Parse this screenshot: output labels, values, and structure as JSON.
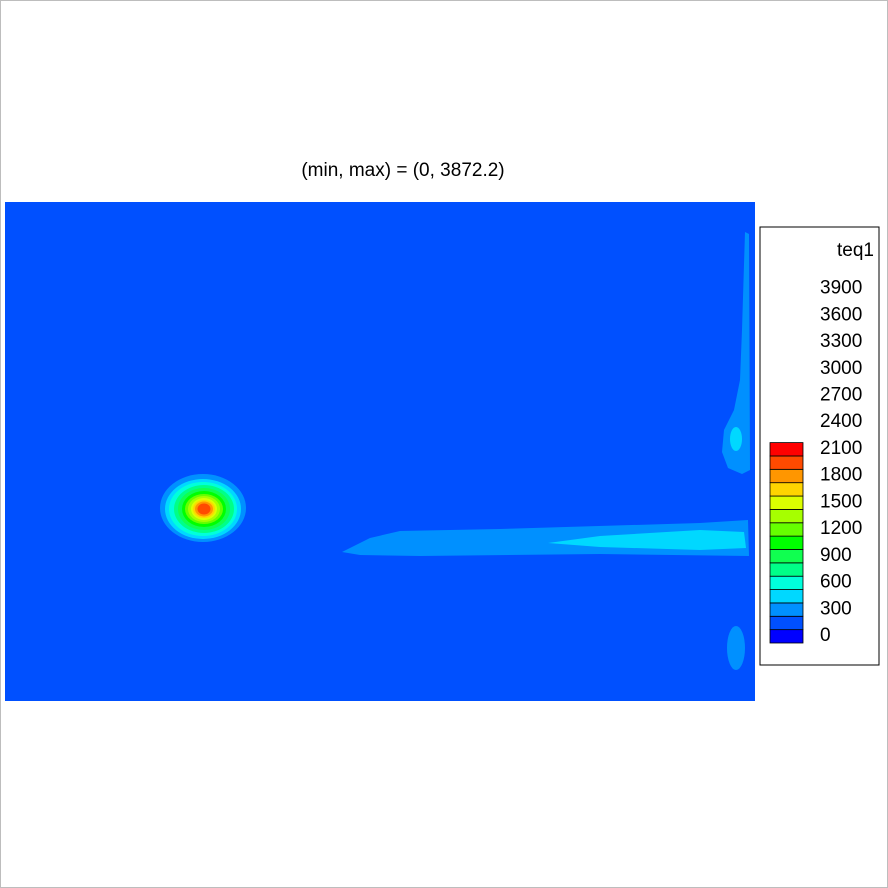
{
  "chart_data": {
    "type": "heatmap",
    "title": "(min, max) = (0, 3872.2)",
    "variable": "teq1",
    "min": 0,
    "max": 3872.2,
    "levels": [
      0,
      300,
      600,
      900,
      1200,
      1500,
      1800,
      2100,
      2400,
      2700,
      3000,
      3300,
      3600,
      3900
    ],
    "colors": [
      "#0000ff",
      "#0050ff",
      "#0090ff",
      "#00d8ff",
      "#00ffdc",
      "#00ff88",
      "#10ff50",
      "#00ff00",
      "#66ff00",
      "#a6ff00",
      "#dcff00",
      "#ffd400",
      "#ff9600",
      "#ff4a00",
      "#ff0000"
    ],
    "background_color": "#0050ff",
    "regions": [
      {
        "feature": "hot spot",
        "value_peak": 3872.2
      },
      {
        "feature": "horizontal band",
        "value_peak": 900
      },
      {
        "feature": "right edge plume",
        "value_peak": 900
      },
      {
        "feature": "lower right patch",
        "value_peak": 600
      }
    ]
  }
}
